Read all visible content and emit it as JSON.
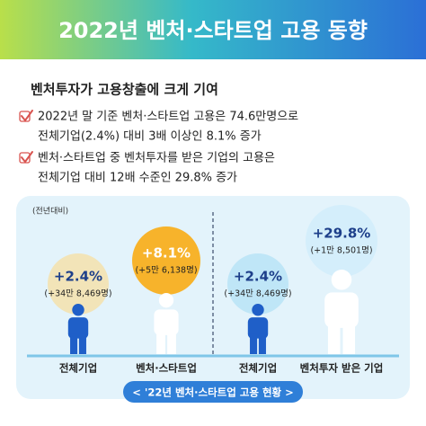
{
  "header": {
    "title": "2022년 벤처·스타트업 고용 동향"
  },
  "subtitle": "벤처투자가 고용창출에 크게 기여",
  "bullets": [
    {
      "lines": [
        "2022년 말 기준 벤처·스타트업 고용은 74.6만명으로",
        "전체기업(2.4%) 대비 3배 이상인 8.1% 증가"
      ]
    },
    {
      "lines": [
        "벤처·스타트업 중 벤처투자를 받은 기업의 고용은",
        "전체기업 대비 12배 수준인 29.8% 증가"
      ]
    }
  ],
  "panel": {
    "note": "(전년대비)",
    "items": [
      {
        "change": "+2.4%",
        "detail": "(+34만 8,469명)",
        "label": "전체기업"
      },
      {
        "change": "+8.1%",
        "detail": "(+5만 6,138명)",
        "label": "벤처·스타트업"
      },
      {
        "change": "+2.4%",
        "detail": "(+34만 8,469명)",
        "label": "전체기업"
      },
      {
        "change": "+29.8%",
        "detail": "(+1만 8,501명)",
        "label": "벤처투자 받은 기업"
      }
    ]
  },
  "footer": "< '22년 벤처·스타트업 고용 현황 >"
}
